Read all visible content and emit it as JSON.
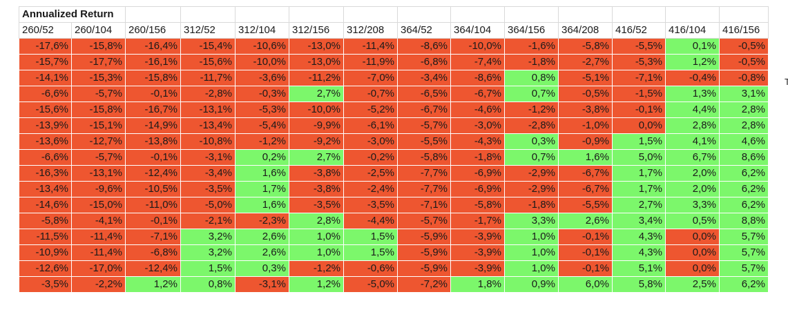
{
  "title": "Annualized Return",
  "edge_glyph": "T",
  "columns": [
    "260/52",
    "260/104",
    "260/156",
    "312/52",
    "312/104",
    "312/156",
    "312/208",
    "364/52",
    "364/104",
    "364/156",
    "364/208",
    "416/52",
    "416/104",
    "416/156"
  ],
  "rows": [
    [
      "-17,6%",
      "-15,8%",
      "-16,4%",
      "-15,4%",
      "-10,6%",
      "-13,0%",
      "-11,4%",
      "-8,6%",
      "-10,0%",
      "-1,6%",
      "-5,8%",
      "-5,5%",
      "0,1%",
      "-0,5%"
    ],
    [
      "-15,7%",
      "-17,7%",
      "-16,1%",
      "-15,6%",
      "-10,0%",
      "-13,0%",
      "-11,9%",
      "-6,8%",
      "-7,4%",
      "-1,8%",
      "-2,7%",
      "-5,3%",
      "1,2%",
      "-0,5%"
    ],
    [
      "-14,1%",
      "-15,3%",
      "-15,8%",
      "-11,7%",
      "-3,6%",
      "-11,2%",
      "-7,0%",
      "-3,4%",
      "-8,6%",
      "0,8%",
      "-5,1%",
      "-7,1%",
      "-0,4%",
      "-0,8%"
    ],
    [
      "-6,6%",
      "-5,7%",
      "-0,1%",
      "-2,8%",
      "-0,3%",
      "2,7%",
      "-0,7%",
      "-6,5%",
      "-6,7%",
      "0,7%",
      "-0,5%",
      "-1,5%",
      "1,3%",
      "3,1%"
    ],
    [
      "-15,6%",
      "-15,8%",
      "-16,7%",
      "-13,1%",
      "-5,3%",
      "-10,0%",
      "-5,2%",
      "-6,7%",
      "-4,6%",
      "-1,2%",
      "-3,8%",
      "-0,1%",
      "4,4%",
      "2,8%"
    ],
    [
      "-13,9%",
      "-15,1%",
      "-14,9%",
      "-13,4%",
      "-5,4%",
      "-9,9%",
      "-6,1%",
      "-5,7%",
      "-3,0%",
      "-2,8%",
      "-1,0%",
      "0,0%",
      "2,8%",
      "2,8%"
    ],
    [
      "-13,6%",
      "-12,7%",
      "-13,8%",
      "-10,8%",
      "-1,2%",
      "-9,2%",
      "-3,0%",
      "-5,5%",
      "-4,3%",
      "0,3%",
      "-0,9%",
      "1,5%",
      "4,1%",
      "4,6%"
    ],
    [
      "-6,6%",
      "-5,7%",
      "-0,1%",
      "-3,1%",
      "0,2%",
      "2,7%",
      "-0,2%",
      "-5,8%",
      "-1,8%",
      "0,7%",
      "1,6%",
      "5,0%",
      "6,7%",
      "8,6%"
    ],
    [
      "-16,3%",
      "-13,1%",
      "-12,4%",
      "-3,4%",
      "1,6%",
      "-3,8%",
      "-2,5%",
      "-7,7%",
      "-6,9%",
      "-2,9%",
      "-6,7%",
      "1,7%",
      "2,0%",
      "6,2%"
    ],
    [
      "-13,4%",
      "-9,6%",
      "-10,5%",
      "-3,5%",
      "1,7%",
      "-3,8%",
      "-2,4%",
      "-7,7%",
      "-6,9%",
      "-2,9%",
      "-6,7%",
      "1,7%",
      "2,0%",
      "6,2%"
    ],
    [
      "-14,6%",
      "-15,0%",
      "-11,0%",
      "-5,0%",
      "1,6%",
      "-3,5%",
      "-3,5%",
      "-7,1%",
      "-5,8%",
      "-1,8%",
      "-5,5%",
      "2,7%",
      "3,3%",
      "6,2%"
    ],
    [
      "-5,8%",
      "-4,1%",
      "-0,1%",
      "-2,1%",
      "-2,3%",
      "2,8%",
      "-4,4%",
      "-5,7%",
      "-1,7%",
      "3,3%",
      "2,6%",
      "3,4%",
      "0,5%",
      "8,8%"
    ],
    [
      "-11,5%",
      "-11,4%",
      "-7,1%",
      "3,2%",
      "2,6%",
      "1,0%",
      "1,5%",
      "-5,9%",
      "-3,9%",
      "1,0%",
      "-0,1%",
      "4,3%",
      "0,0%",
      "5,7%"
    ],
    [
      "-10,9%",
      "-11,4%",
      "-6,8%",
      "3,2%",
      "2,6%",
      "1,0%",
      "1,5%",
      "-5,9%",
      "-3,9%",
      "1,0%",
      "-0,1%",
      "4,3%",
      "0,0%",
      "5,7%"
    ],
    [
      "-12,6%",
      "-17,0%",
      "-12,4%",
      "1,5%",
      "0,3%",
      "-1,2%",
      "-0,6%",
      "-5,9%",
      "-3,9%",
      "1,0%",
      "-0,1%",
      "5,1%",
      "0,0%",
      "5,7%"
    ],
    [
      "-3,5%",
      "-2,2%",
      "1,2%",
      "0,8%",
      "-3,1%",
      "1,2%",
      "-5,0%",
      "-7,2%",
      "1,8%",
      "0,9%",
      "6,0%",
      "5,8%",
      "2,5%",
      "6,2%"
    ]
  ],
  "cell_states": [
    "nnnnnnnnnnnnpn",
    "nnnnnnnnnnnnpn",
    "nnnnnnnnnpnnnn",
    "nnnnnpnnnpnnpp",
    "nnnnnnnnnnnnpp",
    "nnnnnnnnnnnnpp",
    "nnnnnnnnnpnppp",
    "nnnnppnnnppppp",
    "nnnnpnnnnnnppp",
    "nnnnpnnnnnnppp",
    "nnnnpnnnnnnppp",
    "nnnnnpnnnppppp",
    "nnnppppnnpnpnp",
    "nnnppppnnpnpnp",
    "nnnppnnnnpnpnp",
    "nnppnpnnpppppp"
  ],
  "colors": {
    "negative": "#ee5630",
    "positive": "#7cf76b",
    "grid": "#d9d9d9"
  }
}
